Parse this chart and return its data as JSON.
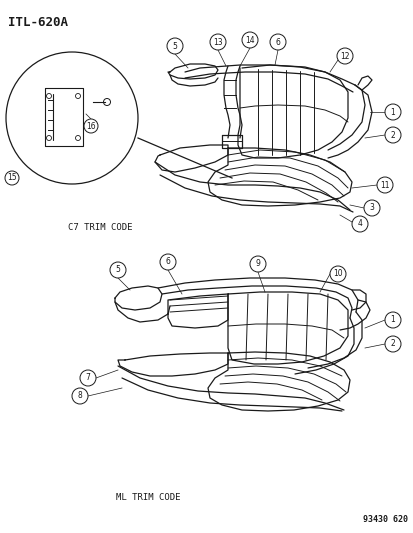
{
  "title": "ITL-620A",
  "part_number": "93430 620",
  "bg_color": "#ffffff",
  "line_color": "#1a1a1a",
  "label_c7": "C7 TRIM CODE",
  "label_ml": "ML TRIM CODE",
  "fig_width": 4.14,
  "fig_height": 5.33,
  "dpi": 100
}
